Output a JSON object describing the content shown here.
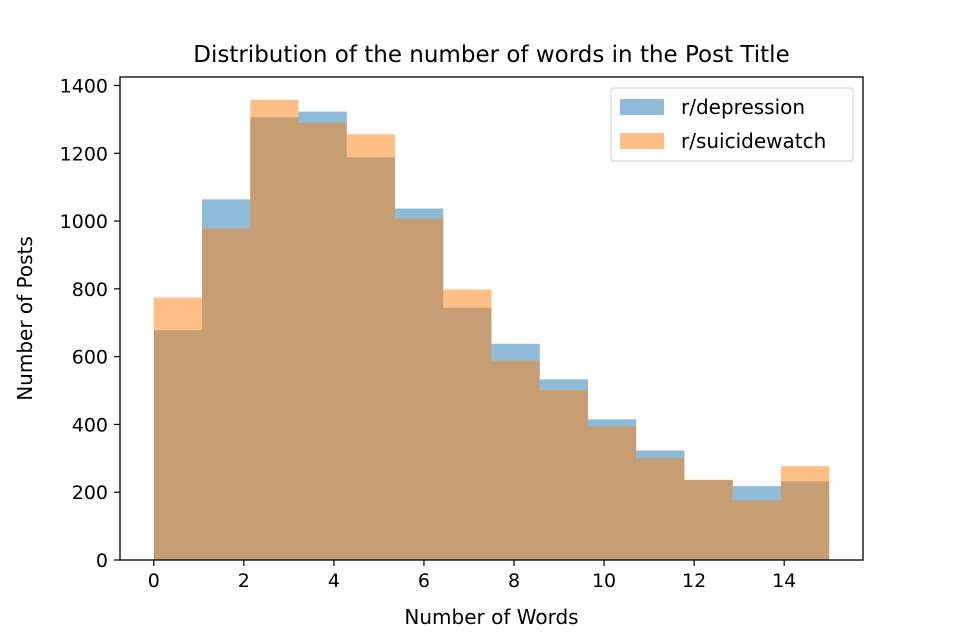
{
  "chart_data": {
    "type": "bar",
    "title": "Distribution of the number of words in the Post Title",
    "xlabel": "Number of Words",
    "ylabel": "Number of Posts",
    "xlim": [
      -0.75,
      15.75
    ],
    "ylim": [
      0,
      1425
    ],
    "xticks": [
      0,
      2,
      4,
      6,
      8,
      10,
      12,
      14
    ],
    "yticks": [
      0,
      200,
      400,
      600,
      800,
      1000,
      1200,
      1400
    ],
    "bin_edges": [
      0,
      1.071,
      2.143,
      3.214,
      4.286,
      5.357,
      6.429,
      7.5,
      8.571,
      9.643,
      10.714,
      11.786,
      12.857,
      13.929,
      15
    ],
    "grid": false,
    "legend_position": "top-right",
    "series": [
      {
        "name": "r/depression",
        "color": "#1f77b4",
        "values": [
          678,
          1064,
          1306,
          1323,
          1188,
          1037,
          744,
          638,
          533,
          415,
          323,
          236,
          218,
          232
        ]
      },
      {
        "name": "r/suicidewatch",
        "color": "#ff7f0e",
        "values": [
          774,
          978,
          1358,
          1290,
          1256,
          1007,
          798,
          588,
          501,
          394,
          300,
          237,
          176,
          277
        ]
      }
    ]
  }
}
